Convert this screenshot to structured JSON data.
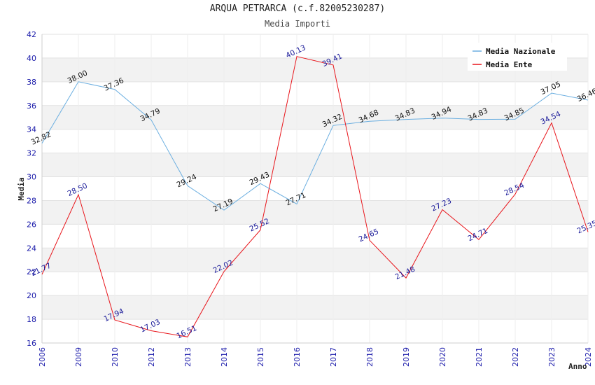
{
  "chart_data": {
    "type": "line",
    "title": "ARQUA PETRARCA (c.f.82005230287)",
    "subtitle": "Media Importi",
    "xlabel": "Anno",
    "ylabel": "Media",
    "categories": [
      "2006",
      "2009",
      "2010",
      "2012",
      "2013",
      "2014",
      "2015",
      "2016",
      "2017",
      "2018",
      "2019",
      "2020",
      "2021",
      "2022",
      "2023",
      "2024"
    ],
    "ylim": [
      16,
      42
    ],
    "yticks": [
      16,
      18,
      20,
      22,
      24,
      26,
      28,
      30,
      32,
      34,
      36,
      38,
      40,
      42
    ],
    "grid": true,
    "legend_position": "top-right",
    "series": [
      {
        "name": "Media Nazionale",
        "color": "#6aaee0",
        "values": [
          32.82,
          38.0,
          37.36,
          34.79,
          29.24,
          27.19,
          29.43,
          27.71,
          34.32,
          34.68,
          34.83,
          34.94,
          34.83,
          34.85,
          37.05,
          36.46
        ],
        "labels": [
          "32.82",
          "38.00",
          "37.36",
          "34.79",
          "29.24",
          "27.19",
          "29.43",
          "27.71",
          "34.32",
          "34.68",
          "34.83",
          "34.94",
          "34.83",
          "34.85",
          "37.05",
          "36.46"
        ]
      },
      {
        "name": "Media Ente",
        "color": "#e8141a",
        "values": [
          21.77,
          28.5,
          17.94,
          17.03,
          16.51,
          22.02,
          25.52,
          40.13,
          39.41,
          24.65,
          21.48,
          27.23,
          24.71,
          28.54,
          34.54,
          25.35
        ],
        "labels": [
          "21.77",
          "28.50",
          "17.94",
          "17.03",
          "16.51",
          "22.02",
          "25.52",
          "40.13",
          "39.41",
          "24.65",
          "21.48",
          "27.23",
          "24.71",
          "28.54",
          "34.54",
          "25.35"
        ]
      }
    ]
  }
}
